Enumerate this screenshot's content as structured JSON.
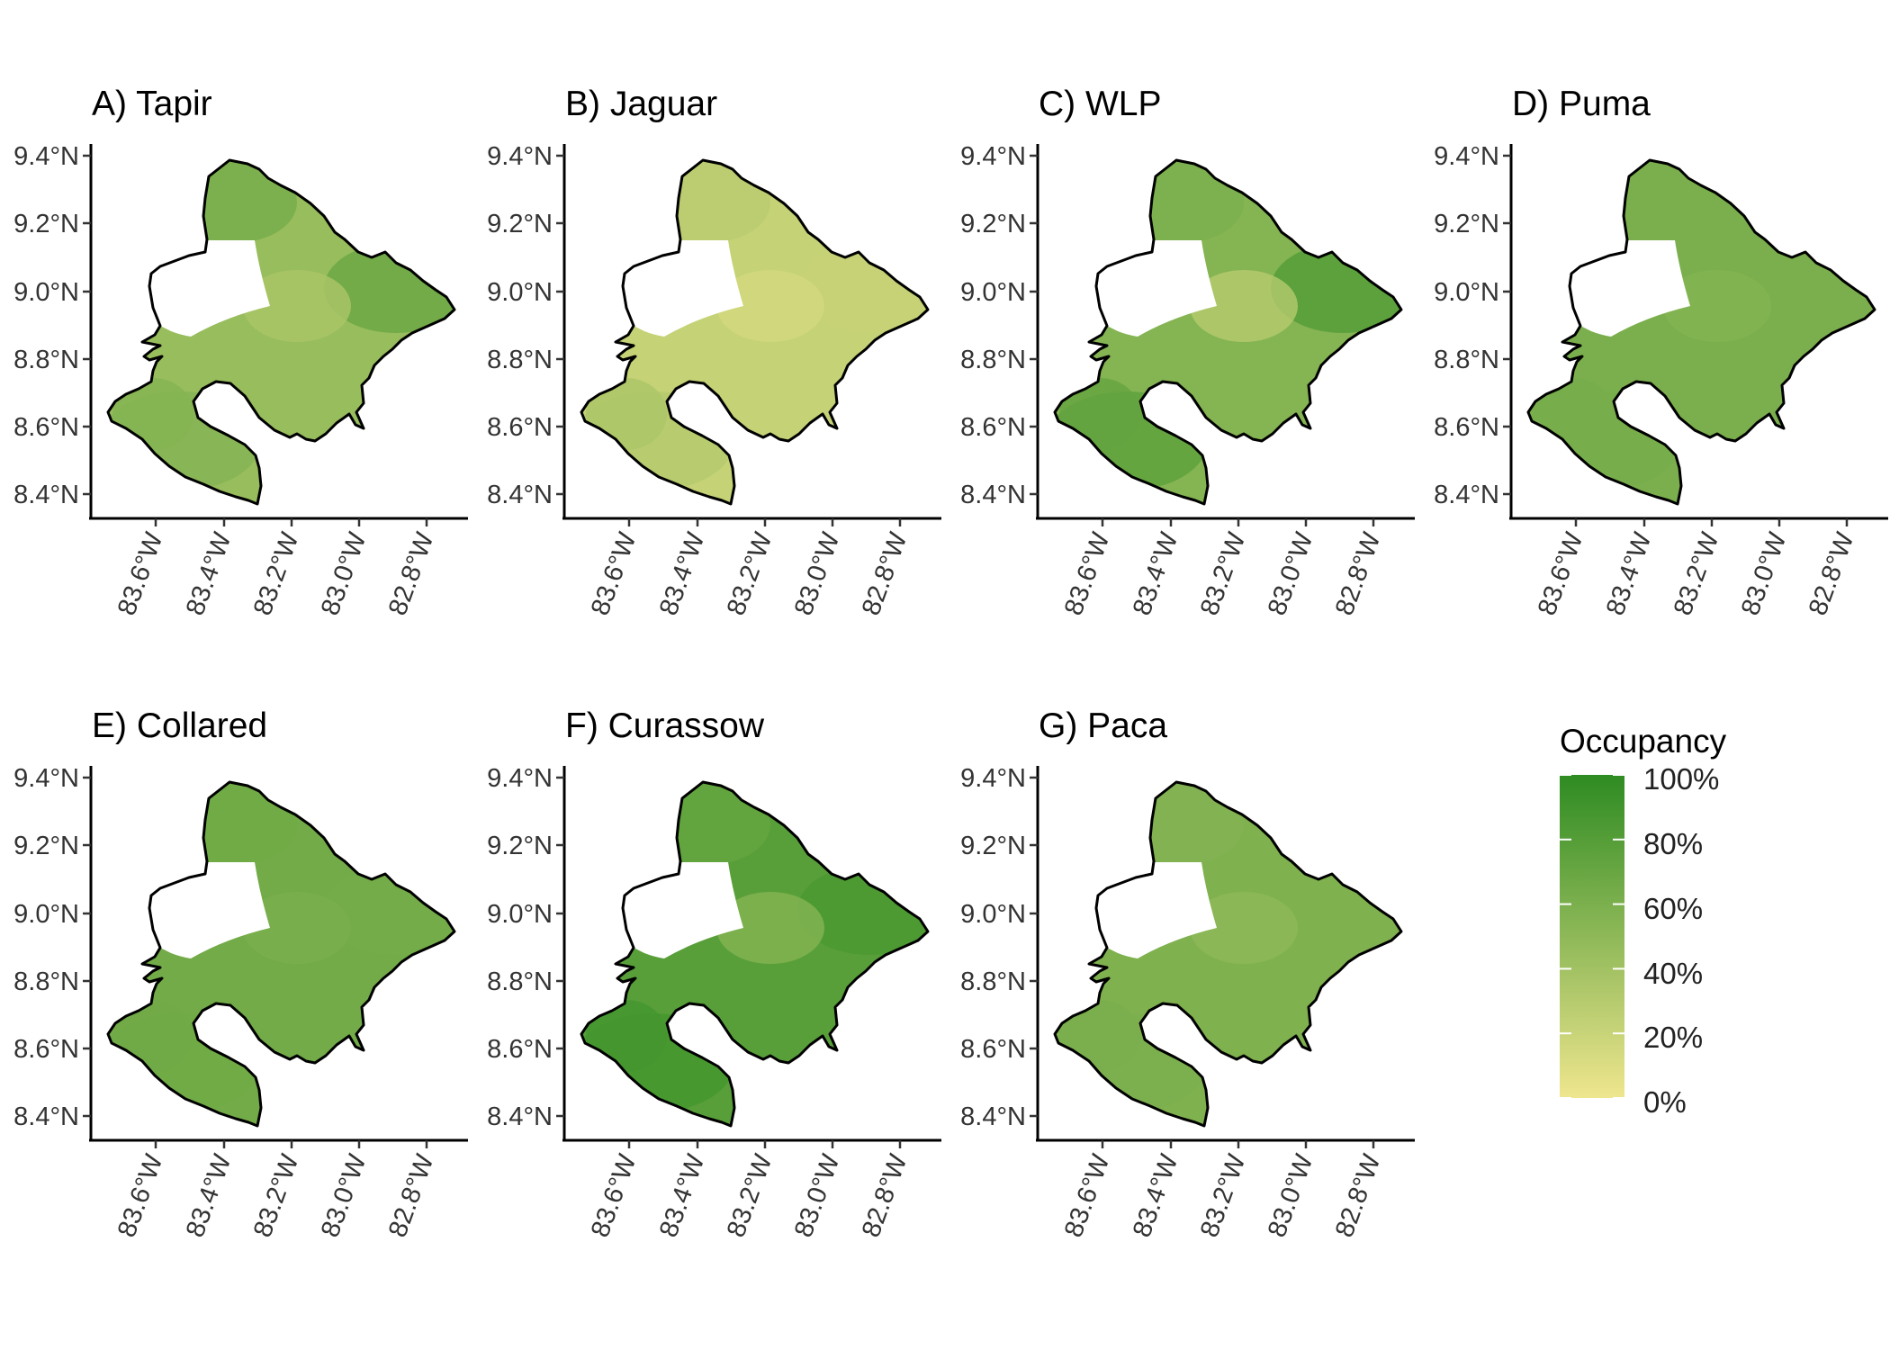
{
  "panels": [
    {
      "id": "A",
      "title": "A) Tapir",
      "mean": 0.45,
      "north": 0.62,
      "south": 0.55,
      "west": 0.55,
      "east": 0.68,
      "patch": 0.35
    },
    {
      "id": "B",
      "title": "B) Jaguar",
      "mean": 0.22,
      "north": 0.28,
      "south": 0.3,
      "west": 0.35,
      "east": 0.22,
      "patch": 0.15
    },
    {
      "id": "C",
      "title": "C) WLP",
      "mean": 0.55,
      "north": 0.6,
      "south": 0.75,
      "west": 0.72,
      "east": 0.8,
      "patch": 0.3
    },
    {
      "id": "D",
      "title": "D) Puma",
      "mean": 0.6,
      "north": 0.6,
      "south": 0.62,
      "west": 0.62,
      "east": 0.6,
      "patch": 0.55
    },
    {
      "id": "E",
      "title": "E) Collared",
      "mean": 0.65,
      "north": 0.66,
      "south": 0.66,
      "west": 0.66,
      "east": 0.64,
      "patch": 0.6
    },
    {
      "id": "F",
      "title": "F) Curassow",
      "mean": 0.78,
      "north": 0.72,
      "south": 0.88,
      "west": 0.88,
      "east": 0.85,
      "patch": 0.55
    },
    {
      "id": "G",
      "title": "G) Paca",
      "mean": 0.58,
      "north": 0.56,
      "south": 0.6,
      "west": 0.6,
      "east": 0.58,
      "patch": 0.5
    }
  ],
  "axes": {
    "lat_ticks": [
      "9.4°N",
      "9.2°N",
      "9.0°N",
      "8.8°N",
      "8.6°N",
      "8.4°N"
    ],
    "lon_ticks": [
      "83.6°W",
      "83.4°W",
      "83.2°W",
      "83.0°W",
      "82.8°W"
    ]
  },
  "legend": {
    "title": "Occupancy",
    "labels": [
      "100%",
      "80%",
      "60%",
      "40%",
      "20%",
      "0%"
    ],
    "color_low": "#EFE68E",
    "color_high": "#2E8B22"
  }
}
